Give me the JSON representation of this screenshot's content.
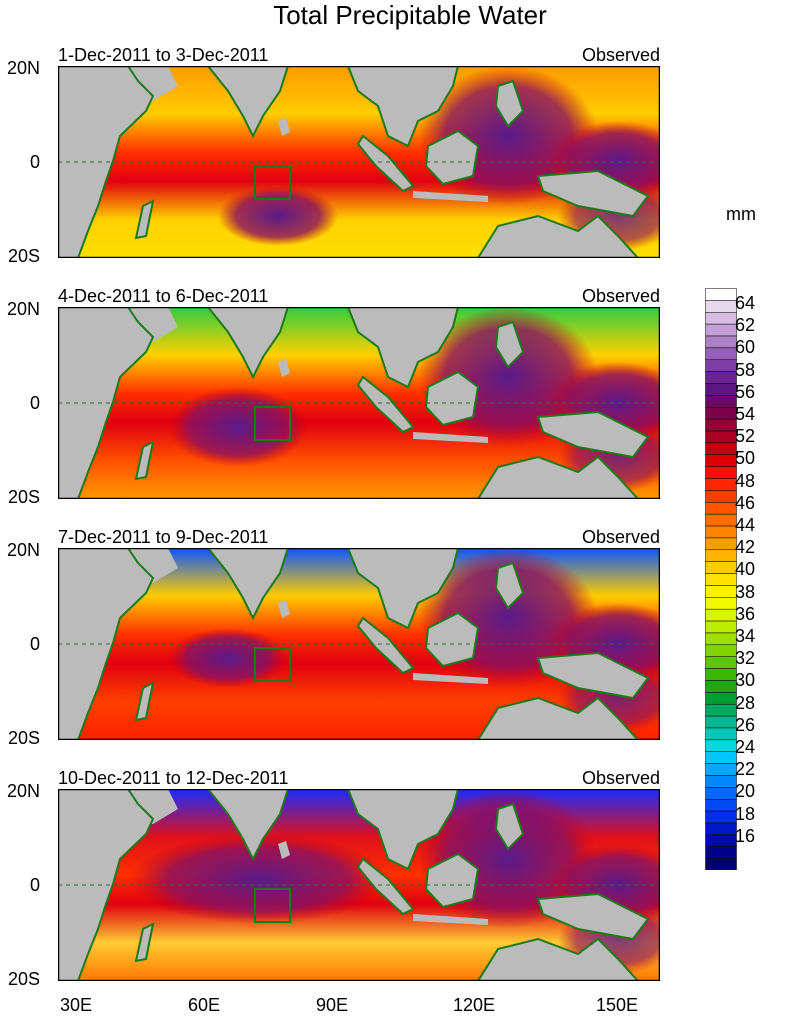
{
  "title": "Total Precipitable Water",
  "panels": [
    {
      "date": "1-Dec-2011 to 3-Dec-2011",
      "tag": "Observed"
    },
    {
      "date": "4-Dec-2011 to 6-Dec-2011",
      "tag": "Observed"
    },
    {
      "date": "7-Dec-2011 to 9-Dec-2011",
      "tag": "Observed"
    },
    {
      "date": "10-Dec-2011 to 12-Dec-2011",
      "tag": "Observed"
    }
  ],
  "lat_labels": [
    "20N",
    "0",
    "20S"
  ],
  "lon_labels": [
    "30E",
    "60E",
    "90E",
    "120E",
    "150E"
  ],
  "colorbar": {
    "unit": "mm",
    "labels": [
      "64",
      "62",
      "60",
      "58",
      "56",
      "54",
      "52",
      "50",
      "48",
      "46",
      "44",
      "42",
      "40",
      "38",
      "36",
      "34",
      "32",
      "30",
      "28",
      "26",
      "24",
      "22",
      "20",
      "18",
      "16"
    ]
  }
}
